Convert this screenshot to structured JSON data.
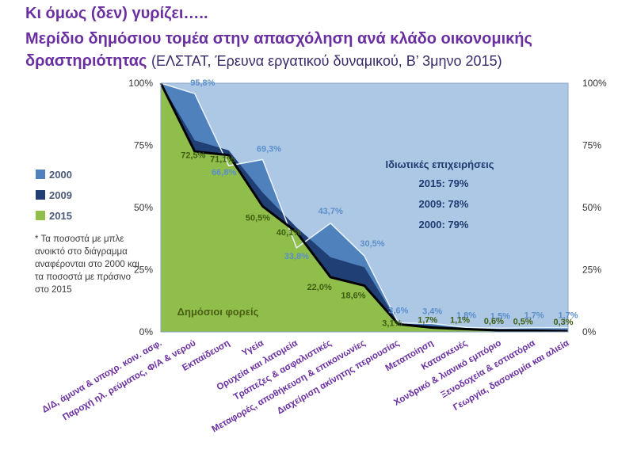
{
  "title": {
    "line1": "Κι όμως (δεν) γυρίζει…..",
    "line2": "Μερίδιο δημόσιου τομέα στην απασχόληση ανά κλάδο οικονομικής",
    "line3": "δραστηριότητας",
    "source": "(ΕΛΣΤΑΤ, Έρευνα εργατικού δυναμικού, Β’ 3μηνο 2015)"
  },
  "note": "* Τα ποσοστά με μπλε ανοικτό στο διάγραμμα αναφέρονται στο 2000 και τα ποσοστά με πράσινο στο 2015",
  "colors": {
    "background": "#adc8e4",
    "series_2000": "#4f81bd",
    "series_2009": "#1f3f75",
    "series_2015": "#8fbe4a",
    "label_2000": "#5b8fcc",
    "label_2015": "#3f5e13",
    "axis_labels": "#6a2fa0",
    "private_text": "#1f3a70",
    "public_text": "#4a5e14"
  },
  "chart_data": {
    "type": "area",
    "categories": [
      "Δ/Δ, άμυνα & υποχρ. κοιν. ασφ.",
      "Παροχή ηλ. ρεύματος, Φ/Α & νερού",
      "Εκπαίδευση",
      "Υγεία",
      "Ορυχεία και λατομεία",
      "Τράπεζες & ασφαλιστικές",
      "Μεταφορές, αποθήκευση & επικοινωνίες",
      "Διαχείριση ακίνητης περιουσίας",
      "Μεταποίηση",
      "Κατασκευές",
      "Χονδρικό & λιανικό εμπόριο",
      "Ξενοδοχεία & εστιατόρια",
      "Γεωργία, δασοκομία και αλιεία"
    ],
    "series": [
      {
        "name": "2000",
        "values": [
          100,
          95.8,
          66.8,
          69.3,
          33.8,
          43.7,
          30.5,
          3.6,
          3.4,
          1.8,
          1.5,
          1.7,
          1.7
        ]
      },
      {
        "name": "2009",
        "values": [
          100,
          77,
          73,
          56,
          42,
          30,
          26,
          3.5,
          2.5,
          1.5,
          1.0,
          0.9,
          0.6
        ]
      },
      {
        "name": "2015",
        "values": [
          100,
          72.5,
          71.1,
          50.5,
          40.1,
          22.0,
          18.6,
          3.1,
          1.7,
          1.1,
          0.6,
          0.5,
          0.3
        ]
      }
    ],
    "labels_2000": [
      "",
      "95,8%",
      "66,8%",
      "69,3%",
      "33,8%",
      "43,7%",
      "30,5%",
      "3,6%",
      "3,4%",
      "1,8%",
      "1,5%",
      "1,7%",
      "1,7%"
    ],
    "labels_2015": [
      "",
      "72,5%",
      "71,1%",
      "50,5%",
      "40,1%",
      "22,0%",
      "18,6%",
      "3,1%",
      "1,7%",
      "1,1%",
      "0,6%",
      "0,5%",
      "0,3%"
    ],
    "ylim": [
      0,
      100
    ],
    "yticks": [
      "0%",
      "25%",
      "50%",
      "75%",
      "100%"
    ],
    "yticks_right": [
      "0%",
      "25%",
      "50%",
      "75%",
      "100%"
    ],
    "legend": [
      "2000",
      "2009",
      "2015"
    ],
    "legend_position": "left",
    "grid": false,
    "annotations": {
      "private_title": "Ιδιωτικές επιχειρήσεις",
      "private_lines": [
        "2015: 79%",
        "2009: 78%",
        "2000: 79%"
      ],
      "public": "Δημόσιοι φορείς"
    }
  }
}
